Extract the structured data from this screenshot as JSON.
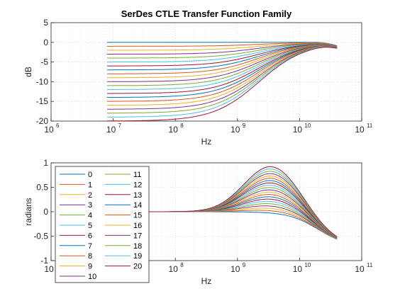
{
  "chart_data": [
    {
      "type": "line",
      "title": "SerDes CTLE Transfer Function Family",
      "xlabel": "Hz",
      "ylabel": "dB",
      "xscale": "log",
      "xlim": [
        1000000,
        100000000000
      ],
      "ylim": [
        -20,
        5
      ],
      "xticks_base": "10",
      "xticks_exp": [
        "6",
        "7",
        "8",
        "9",
        "10",
        "11"
      ],
      "yticks": [
        "5",
        "0",
        "-5",
        "-10",
        "-15",
        "-20"
      ],
      "grid": "on (major and minor)",
      "x_range_of_data_hz": [
        8000000,
        40000000000
      ],
      "series_summary": "21 curves (0..20); low-frequency gain from 0 dB (curve 0) down to about -20 dB (curve 20) in roughly -1 dB steps; all curves rise toward a peak near 0 dB around 2e10 Hz, ending near -2 dB at 4e10 Hz"
    },
    {
      "type": "line",
      "xlabel": "Hz",
      "ylabel": "radians",
      "xscale": "log",
      "xlim": [
        1000000,
        100000000000
      ],
      "ylim": [
        -1,
        1
      ],
      "xticks_base": "10",
      "xticks_exp": [
        "6",
        "7",
        "8",
        "9",
        "10",
        "11"
      ],
      "yticks": [
        "1",
        "0.5",
        "0",
        "-0.5",
        "-1"
      ],
      "grid": "on (major and minor)",
      "legend_placement": "bottom-left",
      "legend": [
        "0",
        "1",
        "2",
        "3",
        "4",
        "5",
        "6",
        "7",
        "8",
        "9",
        "10",
        "11",
        "12",
        "13",
        "14",
        "15",
        "16",
        "17",
        "18",
        "19",
        "20"
      ],
      "series_summary": "21 phase curves; start at 0 rad near 1e7 Hz; phase peak grows from about 0 rad (curve 0) to about 0.95 rad (curve 20) near 3e9 Hz; all fall to between -0.65 and -0.8 rad at 4e10 Hz"
    }
  ],
  "colors": [
    "#0072bd",
    "#d95319",
    "#edb120",
    "#7e2f8e",
    "#77ac30",
    "#4dbeee",
    "#a2142f"
  ]
}
